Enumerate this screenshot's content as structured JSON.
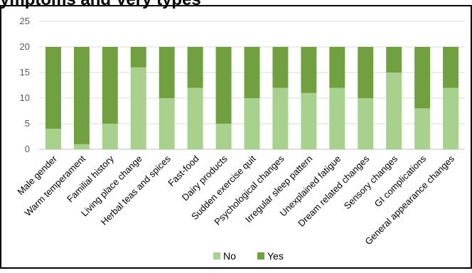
{
  "title_fragment": "ymptoms and Very types",
  "legend": {
    "no_label": "No",
    "yes_label": "Yes"
  },
  "colors": {
    "no": "#a9d18e",
    "yes": "#70a040",
    "grid": "#d9d9d9",
    "axis": "#bfbfbf"
  },
  "chart_data": {
    "type": "bar",
    "stacked": true,
    "categories": [
      "Male gender",
      "Warm temperament",
      "Familial history",
      "Living place change",
      "Herbal teas and spices",
      "Fast-food",
      "Dairy products",
      "Sudden exercise quit",
      "Psychological changes",
      "Irregular sleep pattern",
      "Unexplained fatigue",
      "Dream related changes",
      "Sensory changes",
      "GI complications",
      "General appearance changes"
    ],
    "series": [
      {
        "name": "No",
        "values": [
          4,
          1,
          5,
          16,
          10,
          12,
          5,
          10,
          12,
          11,
          12,
          10,
          15,
          8,
          12
        ]
      },
      {
        "name": "Yes",
        "values": [
          16,
          19,
          15,
          4,
          10,
          8,
          15,
          10,
          8,
          9,
          8,
          10,
          5,
          12,
          8
        ]
      }
    ],
    "ylim": [
      0,
      25
    ],
    "yticks": [
      0,
      5,
      10,
      15,
      20,
      25
    ],
    "grid": true,
    "legend_position": "bottom"
  }
}
